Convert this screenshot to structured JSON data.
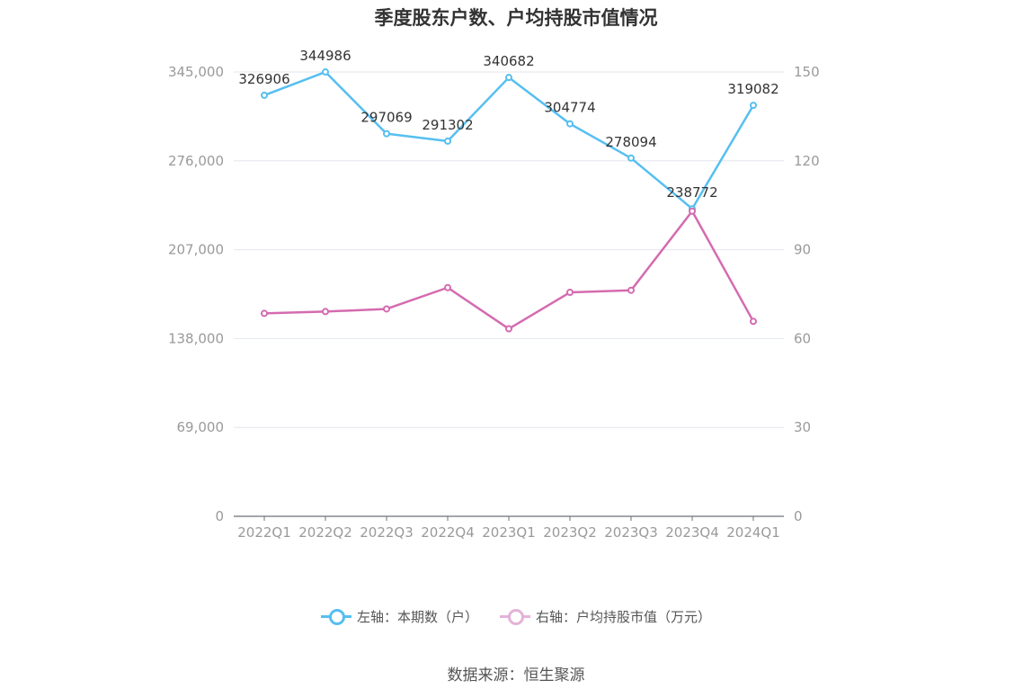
{
  "chart_data": {
    "type": "line",
    "title": "季度股东户数、户均持股市值情况",
    "categories": [
      "2022Q1",
      "2022Q2",
      "2022Q3",
      "2022Q4",
      "2023Q1",
      "2023Q2",
      "2023Q3",
      "2023Q4",
      "2024Q1"
    ],
    "series": [
      {
        "name": "左轴：本期数（户）",
        "axis": "left",
        "color": "#56bff0",
        "values": [
          326906,
          344986,
          297069,
          291302,
          340682,
          304774,
          278094,
          238772,
          319082
        ],
        "show_labels": true
      },
      {
        "name": "右轴：户均持股市值（万元）",
        "axis": "right",
        "color": "#d46bb0",
        "values": [
          68.5,
          69.1,
          70.0,
          77.2,
          63.3,
          75.6,
          76.3,
          103.0,
          65.8
        ],
        "show_labels": false
      }
    ],
    "left_axis": {
      "min": 0,
      "max": 345000,
      "ticks": [
        "0",
        "69,000",
        "138,000",
        "207,000",
        "276,000",
        "345,000"
      ]
    },
    "right_axis": {
      "min": 0,
      "max": 150,
      "ticks": [
        "0",
        "30",
        "60",
        "90",
        "120",
        "150"
      ]
    },
    "grid": true,
    "legend_position": "bottom"
  },
  "source": "数据来源：恒生聚源"
}
